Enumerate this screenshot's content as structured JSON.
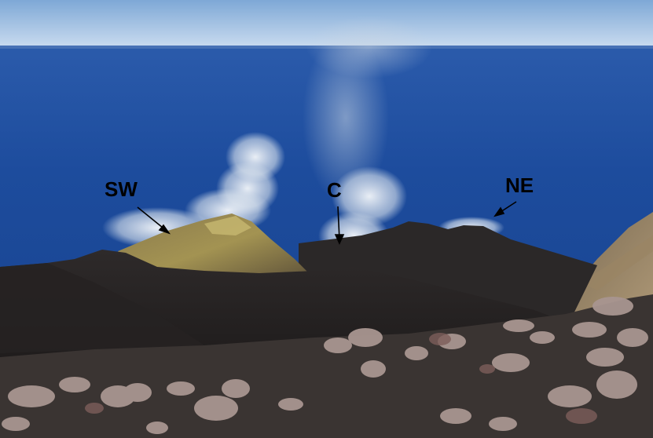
{
  "image": {
    "subject": "volcano-summit-crater-photo",
    "annotations": [
      {
        "key": "sw",
        "text": "SW"
      },
      {
        "key": "c",
        "text": "C"
      },
      {
        "key": "ne",
        "text": "NE"
      }
    ],
    "colors": {
      "sea": "#1f4f9e",
      "sky": "#a9c6e8",
      "ash": "#2a2727",
      "plume": "#e8eef4",
      "annotation": "#000000"
    }
  }
}
